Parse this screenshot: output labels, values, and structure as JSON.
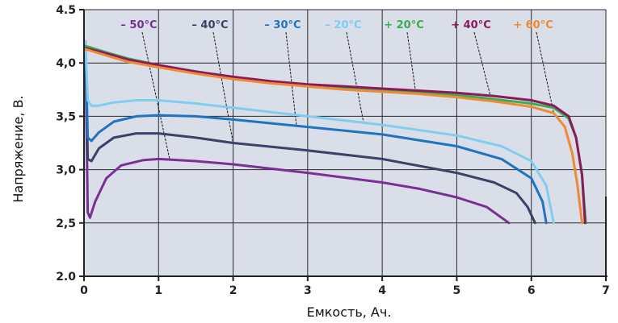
{
  "chart_data": {
    "type": "line",
    "xlabel": "Емкость, Ач.",
    "ylabel": "Напряжение, В.",
    "xlim": [
      0,
      7
    ],
    "ylim": [
      2.0,
      4.5
    ],
    "x_ticks": [
      "0",
      "1",
      "2",
      "3",
      "4",
      "5",
      "6",
      "7"
    ],
    "y_ticks": [
      "2.0",
      "2,5",
      "3,0",
      "3,5",
      "4,0",
      "4.5"
    ],
    "grid": true,
    "legend_position": "top",
    "background_color": "#d9dee9",
    "series": [
      {
        "name": "– 50°C",
        "color": "#7a2f95",
        "x": [
          0.02,
          0.05,
          0.08,
          0.15,
          0.3,
          0.5,
          0.8,
          1.0,
          1.5,
          2.0,
          3.0,
          4.0,
          4.5,
          5.0,
          5.4,
          5.7
        ],
        "y": [
          4.2,
          2.6,
          2.55,
          2.7,
          2.92,
          3.04,
          3.09,
          3.1,
          3.08,
          3.05,
          2.97,
          2.88,
          2.82,
          2.74,
          2.65,
          2.5
        ]
      },
      {
        "name": "– 40°C",
        "color": "#3a4266",
        "x": [
          0.02,
          0.05,
          0.1,
          0.2,
          0.4,
          0.7,
          1.0,
          1.5,
          2.0,
          3.0,
          4.0,
          5.0,
          5.5,
          5.8,
          5.95,
          6.05
        ],
        "y": [
          4.2,
          3.1,
          3.08,
          3.2,
          3.3,
          3.34,
          3.34,
          3.3,
          3.25,
          3.18,
          3.1,
          2.97,
          2.88,
          2.78,
          2.65,
          2.5
        ]
      },
      {
        "name": "– 30°C",
        "color": "#1f74c2",
        "x": [
          0.02,
          0.05,
          0.1,
          0.2,
          0.4,
          0.7,
          1.0,
          1.5,
          2.0,
          3.0,
          4.0,
          5.0,
          5.6,
          6.0,
          6.15,
          6.2
        ],
        "y": [
          4.2,
          3.3,
          3.27,
          3.35,
          3.45,
          3.5,
          3.51,
          3.5,
          3.47,
          3.4,
          3.33,
          3.22,
          3.1,
          2.92,
          2.7,
          2.5
        ]
      },
      {
        "name": "– 20°C",
        "color": "#7fcdf0",
        "x": [
          0.02,
          0.05,
          0.1,
          0.2,
          0.4,
          0.7,
          1.0,
          1.5,
          2.0,
          3.0,
          4.0,
          5.0,
          5.6,
          6.0,
          6.2,
          6.3
        ],
        "y": [
          4.2,
          3.65,
          3.6,
          3.6,
          3.63,
          3.65,
          3.65,
          3.62,
          3.58,
          3.5,
          3.42,
          3.32,
          3.22,
          3.08,
          2.85,
          2.5
        ]
      },
      {
        "name": "+ 20°C",
        "color": "#38ad52",
        "x": [
          0.02,
          0.3,
          0.6,
          1.0,
          1.5,
          2.0,
          2.5,
          3.0,
          3.5,
          4.0,
          4.5,
          5.0,
          5.5,
          6.0,
          6.3,
          6.5,
          6.6,
          6.68,
          6.73
        ],
        "y": [
          4.16,
          4.1,
          4.04,
          3.98,
          3.92,
          3.86,
          3.82,
          3.78,
          3.76,
          3.74,
          3.72,
          3.7,
          3.66,
          3.62,
          3.58,
          3.48,
          3.3,
          2.95,
          2.5
        ]
      },
      {
        "name": "+ 40°C",
        "color": "#8b1a5a",
        "x": [
          0.02,
          0.3,
          0.6,
          1.0,
          1.5,
          2.0,
          2.5,
          3.0,
          3.5,
          4.0,
          4.5,
          5.0,
          5.5,
          6.0,
          6.3,
          6.5,
          6.6,
          6.68,
          6.72
        ],
        "y": [
          4.14,
          4.09,
          4.03,
          3.98,
          3.92,
          3.87,
          3.83,
          3.8,
          3.78,
          3.76,
          3.74,
          3.72,
          3.69,
          3.65,
          3.6,
          3.5,
          3.3,
          2.95,
          2.5
        ]
      },
      {
        "name": "+ 60°C",
        "color": "#ee8a33",
        "x": [
          0.02,
          0.3,
          0.6,
          1.0,
          1.5,
          2.0,
          2.5,
          3.0,
          3.5,
          4.0,
          4.5,
          5.0,
          5.5,
          6.0,
          6.3,
          6.45,
          6.55,
          6.62,
          6.68
        ],
        "y": [
          4.13,
          4.07,
          4.01,
          3.96,
          3.9,
          3.85,
          3.81,
          3.78,
          3.75,
          3.73,
          3.71,
          3.68,
          3.64,
          3.59,
          3.53,
          3.4,
          3.15,
          2.85,
          2.5
        ]
      }
    ]
  }
}
